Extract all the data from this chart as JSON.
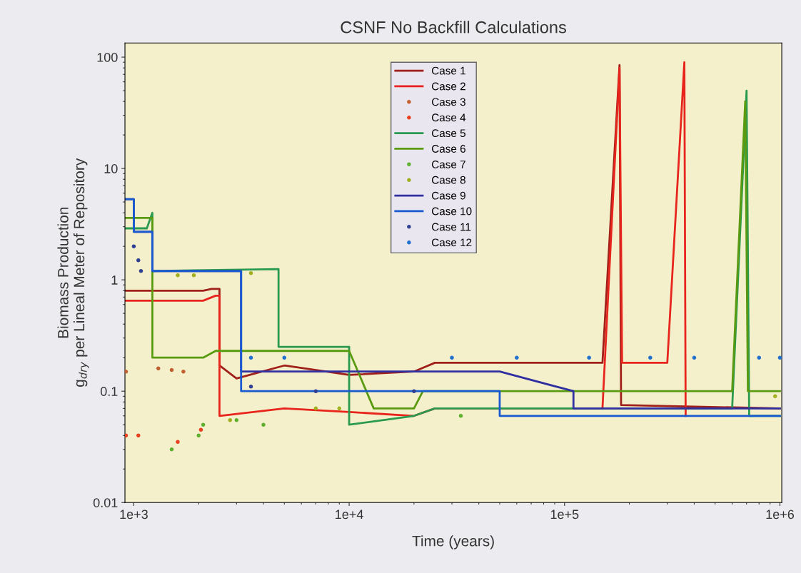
{
  "chart_data": {
    "type": "line",
    "title": "CSNF No Backfill Calculations",
    "xlabel": "Time (years)",
    "ylabel": "Biomass Production\ng$_{dry}$ per Lineal Meter of Repository",
    "log": "xy",
    "xlim": [
      910,
      1020000
    ],
    "ylim": [
      0.01,
      134
    ],
    "xticks": [
      {
        "value": 1000,
        "label": "1e+3"
      },
      {
        "value": 10000,
        "label": "1e+4"
      },
      {
        "value": 100000,
        "label": "1e+5"
      },
      {
        "value": 1000000,
        "label": "1e+6"
      }
    ],
    "yticks": [
      0.01,
      0.1,
      1,
      10,
      100
    ],
    "grid": false,
    "legend": "top",
    "marker": "none",
    "line_style": "solid",
    "series": [
      {
        "name": "Case 1",
        "color": "#a0201a",
        "x": [
          910,
          2100,
          2300,
          2500,
          2500,
          3000,
          5000,
          10000,
          20000,
          25000,
          150000,
          180000,
          183000,
          1000000
        ],
        "values": [
          0.8,
          0.8,
          0.83,
          0.83,
          0.17,
          0.13,
          0.17,
          0.14,
          0.15,
          0.18,
          0.18,
          85,
          0.075,
          0.07
        ]
      },
      {
        "name": "Case 2",
        "color": "#e8251c",
        "x": [
          910,
          2100,
          2400,
          2500,
          2500,
          5000,
          10000,
          20000,
          25000,
          150000,
          180000,
          185000,
          300000,
          360000,
          365000
        ],
        "values": [
          0.65,
          0.65,
          0.72,
          0.72,
          0.06,
          0.07,
          0.065,
          0.06,
          0.07,
          0.07,
          80,
          0.18,
          0.18,
          90,
          0.06
        ]
      },
      {
        "name": "Case 3",
        "color": "#c06030",
        "type": "scatter",
        "x": [
          920,
          1300,
          1500,
          1700
        ],
        "values": [
          0.15,
          0.16,
          0.155,
          0.15
        ]
      },
      {
        "name": "Case 4",
        "color": "#e84020",
        "type": "scatter",
        "x": [
          920,
          1050,
          1600,
          2050
        ],
        "values": [
          0.04,
          0.04,
          0.035,
          0.045
        ]
      },
      {
        "name": "Case 5",
        "color": "#2a9a50",
        "x": [
          910,
          1150,
          1220,
          1220,
          4700,
          4700,
          10000,
          10000,
          20000,
          25000,
          600000,
          700000,
          720000,
          1000000
        ],
        "values": [
          2.9,
          2.9,
          4,
          1.2,
          1.25,
          0.25,
          0.25,
          0.05,
          0.06,
          0.07,
          0.07,
          50,
          0.06,
          0.06
        ]
      },
      {
        "name": "Case 6",
        "color": "#5a9a10",
        "x": [
          910,
          1220,
          1220,
          2100,
          2400,
          10000,
          13000,
          20000,
          22000,
          600000,
          690000,
          710000,
          1000000
        ],
        "values": [
          3.6,
          3.6,
          0.2,
          0.2,
          0.23,
          0.23,
          0.07,
          0.07,
          0.1,
          0.1,
          40,
          0.1,
          0.1
        ]
      },
      {
        "name": "Case 7",
        "color": "#60b030",
        "type": "scatter",
        "x": [
          1500,
          2000,
          2100,
          3000,
          4000,
          33000
        ],
        "values": [
          0.03,
          0.04,
          0.05,
          0.055,
          0.05,
          0.06
        ]
      },
      {
        "name": "Case 8",
        "color": "#a0b020",
        "type": "scatter",
        "x": [
          1600,
          1900,
          3500,
          2800,
          7000,
          9000,
          950000
        ],
        "values": [
          1.1,
          1.1,
          1.15,
          0.055,
          0.07,
          0.07,
          0.09
        ]
      },
      {
        "name": "Case 9",
        "color": "#3030a0",
        "x": [
          910,
          1000,
          1000,
          1220,
          1220,
          3150,
          3150,
          50000,
          110000,
          110000,
          1000000
        ],
        "values": [
          5.3,
          5.3,
          2.7,
          2.7,
          1.2,
          1.2,
          0.15,
          0.15,
          0.1,
          0.07,
          0.07
        ]
      },
      {
        "name": "Case 10",
        "color": "#1a5ad0",
        "x": [
          910,
          1000,
          1000,
          1220,
          1220,
          3150,
          3150,
          50000,
          50000,
          1000000
        ],
        "values": [
          5.3,
          5.3,
          2.7,
          2.7,
          1.2,
          1.2,
          0.1,
          0.1,
          0.06,
          0.06
        ]
      },
      {
        "name": "Case 11",
        "color": "#304090",
        "type": "scatter",
        "x": [
          1000,
          1050,
          1080,
          3500,
          7000,
          20000
        ],
        "values": [
          2,
          1.5,
          1.2,
          0.11,
          0.1,
          0.1
        ]
      },
      {
        "name": "Case 12",
        "color": "#2070d0",
        "type": "scatter",
        "x": [
          3500,
          5000,
          30000,
          60000,
          130000,
          250000,
          400000,
          800000,
          1000000
        ],
        "values": [
          0.2,
          0.2,
          0.2,
          0.2,
          0.2,
          0.2,
          0.2,
          0.2,
          0.2
        ]
      }
    ]
  }
}
